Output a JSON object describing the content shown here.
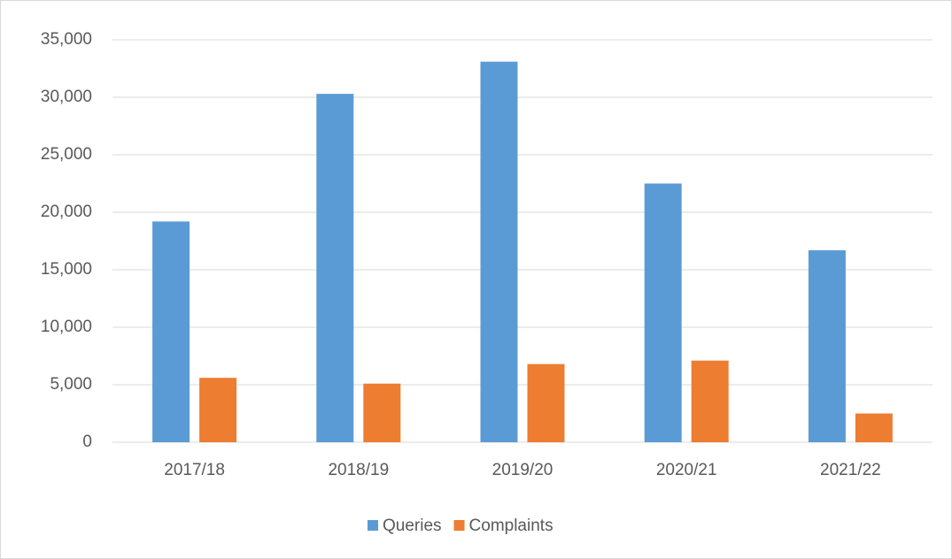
{
  "chart_data": {
    "type": "bar",
    "categories": [
      "2017/18",
      "2018/19",
      "2019/20",
      "2020/21",
      "2021/22"
    ],
    "series": [
      {
        "name": "Queries",
        "color": "#5b9bd5",
        "values": [
          19200,
          30300,
          33100,
          22500,
          16700
        ]
      },
      {
        "name": "Complaints",
        "color": "#ed7d31",
        "values": [
          5600,
          5100,
          6800,
          7100,
          2500
        ]
      }
    ],
    "ylim": [
      0,
      35000
    ],
    "yticks": [
      0,
      {
        "value": 5000,
        "label": "5,000"
      },
      {
        "value": 10000,
        "label": "10,000"
      },
      {
        "value": 15000,
        "label": "15,000"
      },
      {
        "value": 20000,
        "label": "20,000"
      },
      {
        "value": 25000,
        "label": "25,000"
      },
      {
        "value": 30000,
        "label": "30,000"
      },
      {
        "value": 35000,
        "label": "35,000"
      }
    ],
    "grid": true,
    "legend": "bottom"
  }
}
